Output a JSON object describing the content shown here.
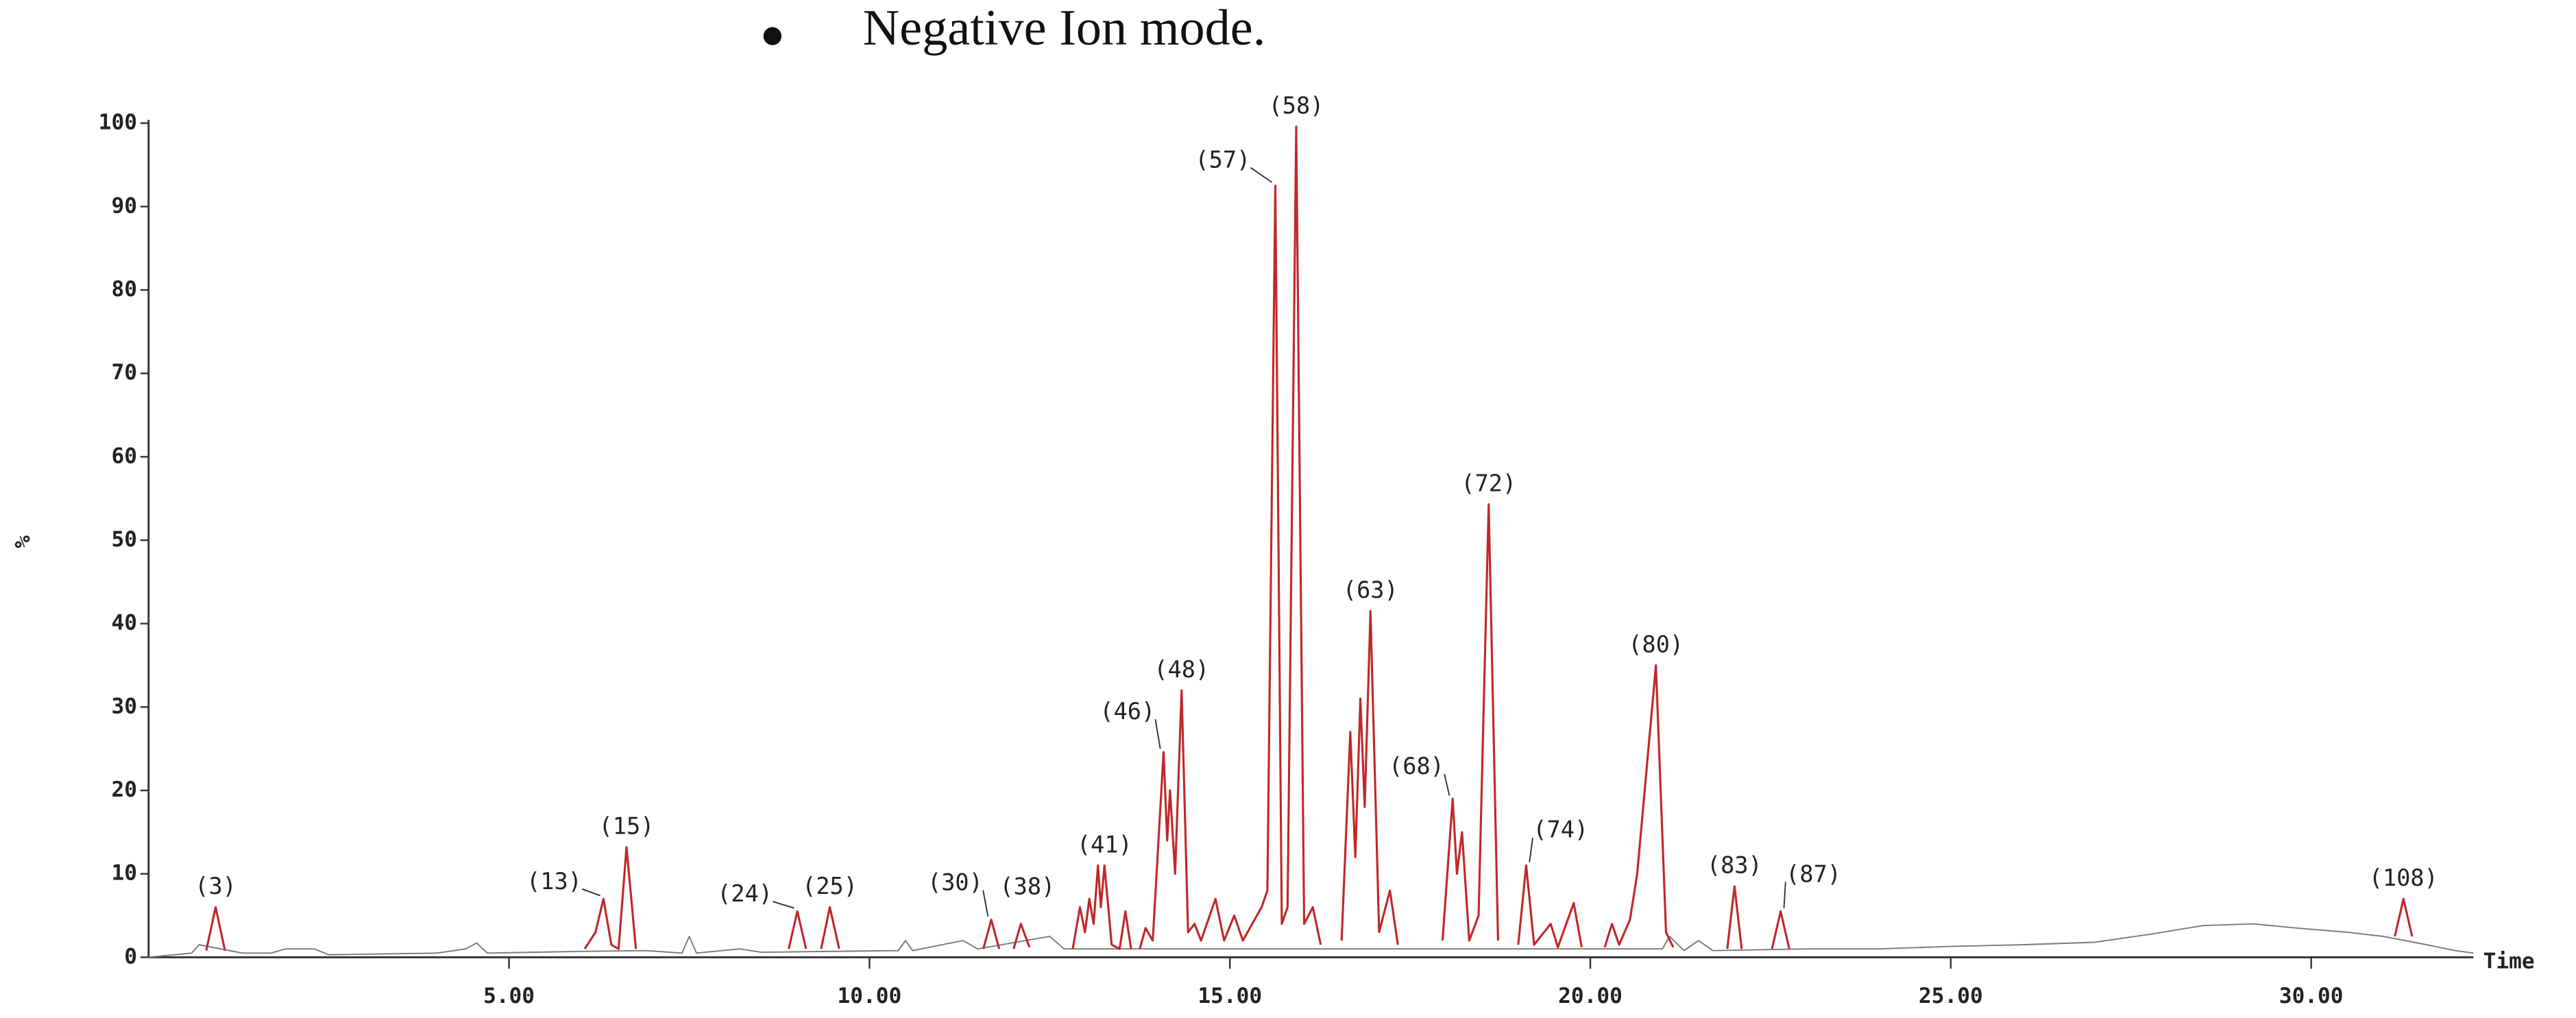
{
  "heading": "Negative Ion mode.",
  "chart_data": {
    "type": "line",
    "x_label": "Time",
    "y_label": "%",
    "xlim": [
      0,
      32.25
    ],
    "ylim": [
      0,
      100
    ],
    "xticks": [
      {
        "value": 5,
        "label": "5.00"
      },
      {
        "value": 10,
        "label": "10.00"
      },
      {
        "value": 15,
        "label": "15.00"
      },
      {
        "value": 20,
        "label": "20.00"
      },
      {
        "value": 25,
        "label": "25.00"
      },
      {
        "value": 30,
        "label": "30.00"
      }
    ],
    "yticks": [
      0,
      10,
      20,
      30,
      40,
      50,
      60,
      70,
      80,
      90,
      100
    ],
    "series": [
      {
        "color": "#7a7a7a",
        "x": [
          0,
          0.6,
          0.7,
          1.3,
          1.7,
          1.9,
          2.3,
          2.5,
          4,
          4.4,
          4.55,
          4.7,
          6,
          6.9,
          7.4,
          7.5,
          7.6,
          8.2,
          8.5,
          10.4,
          10.5,
          10.6,
          11.3,
          11.5,
          12.5,
          12.7,
          14,
          21,
          21.1,
          21.3,
          21.5,
          21.7,
          23,
          24,
          25,
          26,
          27,
          27.8,
          28.5,
          29.2,
          29.8,
          30.5,
          31,
          31.6,
          32,
          32.25
        ],
        "values": [
          0,
          0.5,
          1.5,
          0.5,
          0.5,
          1,
          1,
          0.3,
          0.5,
          1,
          1.7,
          0.5,
          0.7,
          0.8,
          0.5,
          2.5,
          0.5,
          1,
          0.6,
          0.8,
          2,
          0.8,
          2,
          1,
          2.5,
          1,
          1,
          1,
          2.5,
          0.8,
          2,
          0.8,
          1,
          1,
          1.3,
          1.5,
          1.8,
          2.8,
          3.8,
          4,
          3.5,
          3,
          2.5,
          1.5,
          0.8,
          0.5
        ]
      },
      {
        "color": "#c0282a",
        "x": [
          0.8,
          0.93,
          1.06,
          null,
          6.05,
          6.2,
          6.31,
          6.42,
          6.52,
          6.63,
          6.76,
          null,
          8.88,
          9.0,
          9.12,
          null,
          9.33,
          9.45,
          9.58,
          null,
          11.58,
          11.69,
          11.8,
          null,
          12.0,
          12.1,
          12.22,
          null,
          12.82,
          12.92,
          12.99,
          13.05,
          13.11,
          13.17,
          13.21,
          13.26,
          13.36,
          13.47,
          13.55,
          13.63,
          null,
          13.75,
          13.83,
          13.93,
          14.08,
          14.13,
          14.17,
          14.24,
          14.33,
          14.42,
          14.51,
          14.6,
          14.8,
          14.92,
          15.06,
          15.18,
          15.44,
          15.52,
          15.63,
          15.72,
          15.8,
          15.92,
          16.03,
          16.15,
          16.26,
          null,
          16.55,
          16.67,
          16.74,
          16.81,
          16.87,
          16.95,
          17.07,
          17.22,
          17.33,
          null,
          17.95,
          18.09,
          18.15,
          18.22,
          18.32,
          18.45,
          18.59,
          18.72,
          null,
          19.0,
          19.11,
          19.22,
          19.45,
          19.55,
          19.77,
          19.88,
          null,
          20.2,
          20.3,
          20.4,
          20.55,
          20.65,
          20.91,
          21.05,
          21.15,
          null,
          21.9,
          22.0,
          22.1,
          null,
          22.52,
          22.64,
          22.76,
          null,
          31.16,
          31.28,
          31.4
        ],
        "values": [
          0.8,
          6,
          0.8,
          null,
          1,
          3,
          7,
          1.5,
          1,
          13.2,
          1,
          null,
          1,
          5.5,
          1,
          null,
          1,
          6,
          1,
          null,
          1,
          4.5,
          1,
          null,
          1,
          4,
          1.2,
          null,
          1,
          6,
          3,
          7,
          4,
          11,
          6,
          11,
          1.5,
          1,
          5.5,
          1,
          null,
          1,
          3.5,
          2,
          24.6,
          14,
          20,
          10,
          32,
          3,
          4,
          2,
          7,
          2,
          5,
          2,
          6,
          8,
          92.5,
          4,
          6,
          99.6,
          4,
          6,
          1.5,
          null,
          2,
          27,
          12,
          31,
          18,
          41.5,
          3,
          8,
          1.5,
          null,
          2,
          19,
          10,
          15,
          2,
          5,
          54.3,
          2,
          null,
          1.5,
          11,
          1.5,
          4,
          1.2,
          6.5,
          1.2,
          null,
          1.2,
          4,
          1.5,
          4.5,
          10,
          35,
          3,
          1.2,
          null,
          1,
          8.5,
          1,
          null,
          1,
          5.5,
          1,
          null,
          2.5,
          7,
          2.5
        ]
      }
    ],
    "annotations": [
      {
        "text": "(3)",
        "x": 0.93,
        "y": 6
      },
      {
        "text": "(13)",
        "x": 6.31,
        "y": 7
      },
      {
        "text": "(15)",
        "x": 6.63,
        "y": 13.2
      },
      {
        "text": "(24)",
        "x": 9.0,
        "y": 5.5
      },
      {
        "text": "(25)",
        "x": 9.45,
        "y": 6
      },
      {
        "text": "(30)",
        "x": 11.69,
        "y": 4.5
      },
      {
        "text": "(38)",
        "x": 12.1,
        "y": 4
      },
      {
        "text": "(41)",
        "x": 13.17,
        "y": 11
      },
      {
        "text": "(46)",
        "x": 14.08,
        "y": 24.6
      },
      {
        "text": "(48)",
        "x": 14.33,
        "y": 32
      },
      {
        "text": "(57)",
        "x": 15.63,
        "y": 92.5
      },
      {
        "text": "(58)",
        "x": 15.92,
        "y": 99.6
      },
      {
        "text": "(63)",
        "x": 16.95,
        "y": 41.5
      },
      {
        "text": "(68)",
        "x": 18.09,
        "y": 19
      },
      {
        "text": "(72)",
        "x": 18.59,
        "y": 54.3
      },
      {
        "text": "(74)",
        "x": 19.11,
        "y": 11
      },
      {
        "text": "(80)",
        "x": 20.91,
        "y": 35
      },
      {
        "text": "(83)",
        "x": 22.0,
        "y": 8.5
      },
      {
        "text": "(87)",
        "x": 22.64,
        "y": 5.5
      },
      {
        "text": "(108)",
        "x": 31.28,
        "y": 7
      }
    ]
  }
}
